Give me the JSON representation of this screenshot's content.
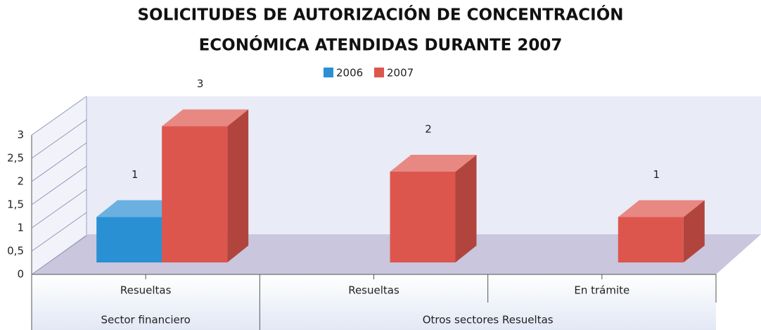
{
  "chart_data": {
    "type": "bar3d",
    "title": [
      "SOLICITUDES DE AUTORIZACIÓN DE CONCENTRACIÓN",
      "ECONÓMICA ATENDIDAS DURANTE 2007"
    ],
    "groups": [
      {
        "label": "Sector financiero",
        "categories": [
          "Resueltas"
        ]
      },
      {
        "label": "Otros sectores Resueltas",
        "categories": [
          "Resueltas",
          "En trámite"
        ]
      }
    ],
    "series": [
      {
        "name": "2006",
        "color": "#2a90d4",
        "values": [
          1,
          null,
          null
        ]
      },
      {
        "name": "2007",
        "color": "#dd564d",
        "values": [
          3,
          2,
          1
        ]
      }
    ],
    "ylim": [
      0,
      3
    ],
    "yticks": [
      0,
      {
        "value": 0.5,
        "label": "0,5"
      },
      1,
      {
        "value": 1.5,
        "label": "1,5"
      },
      2,
      {
        "value": 2.5,
        "label": "2,5"
      },
      3
    ],
    "legend": "top"
  }
}
